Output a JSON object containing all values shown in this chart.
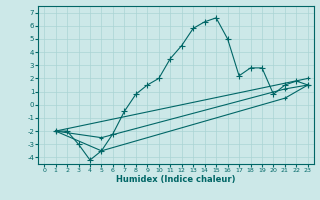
{
  "xlabel": "Humidex (Indice chaleur)",
  "bg_color": "#cce8e8",
  "line_color": "#006666",
  "grid_color": "#aad4d4",
  "marker": "+",
  "xlim": [
    -0.5,
    23.5
  ],
  "ylim": [
    -4.5,
    7.5
  ],
  "xticks": [
    0,
    1,
    2,
    3,
    4,
    5,
    6,
    7,
    8,
    9,
    10,
    11,
    12,
    13,
    14,
    15,
    16,
    17,
    18,
    19,
    20,
    21,
    22,
    23
  ],
  "yticks": [
    -4,
    -3,
    -2,
    -1,
    0,
    1,
    2,
    3,
    4,
    5,
    6,
    7
  ],
  "series": [
    {
      "x": [
        1,
        2,
        3,
        4,
        5,
        6,
        7,
        8,
        9,
        10,
        11,
        12,
        13,
        14,
        15,
        16,
        17,
        18,
        19,
        20,
        21,
        22,
        23
      ],
      "y": [
        -2,
        -2,
        -3,
        -4.2,
        -3.5,
        -2.2,
        -0.5,
        0.8,
        1.5,
        2.0,
        3.5,
        4.5,
        5.8,
        6.3,
        6.6,
        5.0,
        2.2,
        2.8,
        2.8,
        0.8,
        1.5,
        1.8,
        1.5
      ]
    },
    {
      "x": [
        1,
        23
      ],
      "y": [
        -2,
        2.0
      ]
    },
    {
      "x": [
        1,
        5,
        21,
        23
      ],
      "y": [
        -2,
        -2.5,
        1.2,
        1.5
      ]
    },
    {
      "x": [
        1,
        5,
        21,
        23
      ],
      "y": [
        -2,
        -3.5,
        0.5,
        1.5
      ]
    }
  ]
}
